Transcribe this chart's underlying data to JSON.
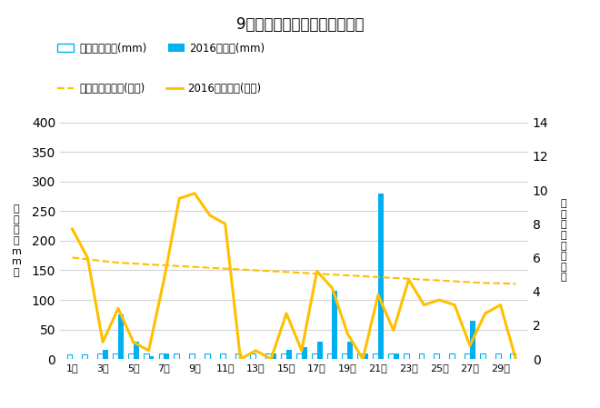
{
  "title": "9月降水量・日照時間（日別）",
  "days": [
    1,
    2,
    3,
    4,
    5,
    6,
    7,
    8,
    9,
    10,
    11,
    12,
    13,
    14,
    15,
    16,
    17,
    18,
    19,
    20,
    21,
    22,
    23,
    24,
    25,
    26,
    27,
    28,
    29,
    30
  ],
  "precip_2016": [
    0,
    0,
    15,
    75,
    30,
    5,
    10,
    0,
    0,
    0,
    0,
    0,
    0,
    10,
    15,
    20,
    30,
    115,
    30,
    10,
    280,
    10,
    0,
    0,
    0,
    0,
    65,
    0,
    0,
    0
  ],
  "precip_avg": [
    8,
    8,
    10,
    10,
    10,
    10,
    10,
    10,
    10,
    10,
    10,
    10,
    10,
    10,
    10,
    10,
    10,
    10,
    10,
    10,
    10,
    10,
    10,
    10,
    10,
    10,
    10,
    10,
    10,
    10
  ],
  "sunshine_2016": [
    7.7,
    6.0,
    1.0,
    3.0,
    1.0,
    0.5,
    4.7,
    9.5,
    9.8,
    8.5,
    8.0,
    0.0,
    0.5,
    0.0,
    2.7,
    0.5,
    5.2,
    4.2,
    1.5,
    0.0,
    3.8,
    1.7,
    4.7,
    3.2,
    3.5,
    3.2,
    0.8,
    2.7,
    3.2,
    0.0
  ],
  "sunshine_avg": [
    6.0,
    5.9,
    5.8,
    5.7,
    5.65,
    5.6,
    5.55,
    5.5,
    5.45,
    5.4,
    5.35,
    5.3,
    5.25,
    5.2,
    5.15,
    5.1,
    5.05,
    5.0,
    4.95,
    4.9,
    4.85,
    4.8,
    4.75,
    4.7,
    4.65,
    4.6,
    4.55,
    4.5,
    4.48,
    4.45
  ],
  "precip_color": "#00B0F0",
  "precip_avg_color": "#00B0F0",
  "sunshine_color": "#FFC000",
  "sunshine_avg_color": "#FFC000",
  "ylabel_left": "降\n水\n量\n（\nm\nm\n）",
  "ylabel_right": "日\n照\n時\n間\n（\n時\n間\n）",
  "ylim_left": [
    0,
    400
  ],
  "ylim_right": [
    0,
    14
  ],
  "yticks_left": [
    0,
    50,
    100,
    150,
    200,
    250,
    300,
    350,
    400
  ],
  "yticks_right": [
    0,
    2,
    4,
    6,
    8,
    10,
    12,
    14
  ],
  "background_color": "#ffffff",
  "legend1_label": "降水量平年値(mm)",
  "legend2_label": "2016降水量(mm)",
  "legend3_label": "日照時間平年値(時間)",
  "legend4_label": "2016日照時間(時間)"
}
